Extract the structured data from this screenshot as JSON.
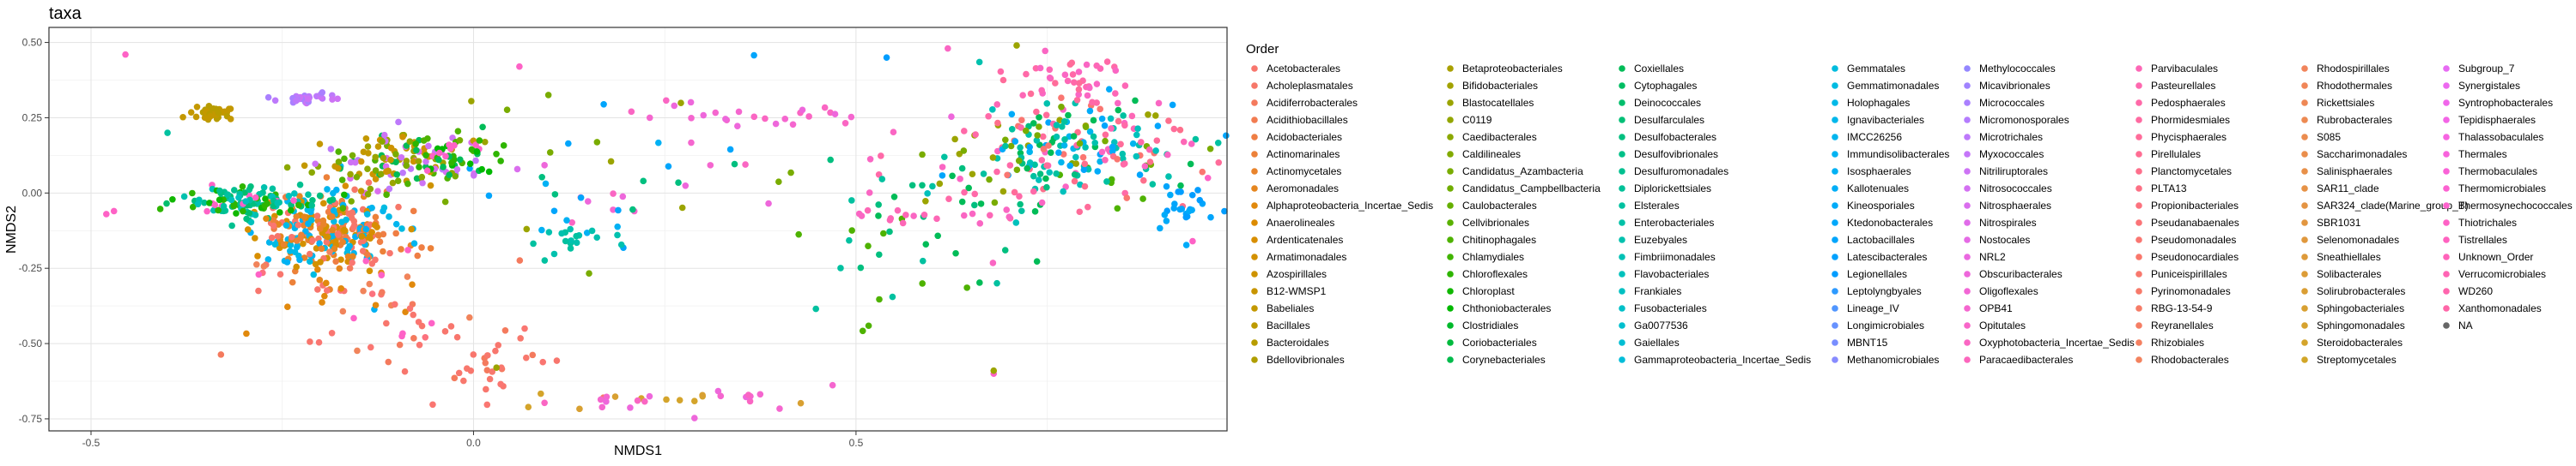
{
  "chart_data": {
    "type": "scatter",
    "title": "taxa",
    "xlabel": "NMDS1",
    "ylabel": "NMDS2",
    "xlim": [
      -0.555,
      0.985
    ],
    "ylim": [
      -0.79,
      0.55
    ],
    "x_ticks": [
      -0.5,
      0,
      0.5
    ],
    "x_tick_labels": [
      "-0.5",
      "0.0",
      "0.5"
    ],
    "y_ticks": [
      0.5,
      0.25,
      0,
      -0.25,
      -0.5,
      -0.75
    ],
    "y_tick_labels": [
      "0.50",
      "0.25",
      "0.00",
      "-0.25",
      "-0.50",
      "-0.75"
    ],
    "grid": true,
    "legend_title": "Order",
    "legend_position": "right",
    "legend_rows": 17,
    "categories": [
      "Acetobacterales",
      "Acholeplasmatales",
      "Acidiferrobacterales",
      "Acidithiobacillales",
      "Acidobacteriales",
      "Actinomarinales",
      "Actinomycetales",
      "Aeromonadales",
      "Alphaproteobacteria_Incertae_Sedis",
      "Anaerolineales",
      "Ardenticatenales",
      "Armatimonadales",
      "Azospirillales",
      "B12-WMSP1",
      "Babeliales",
      "Bacillales",
      "Bacteroidales",
      "Bdellovibrionales",
      "Betaproteobacteriales",
      "Bifidobacteriales",
      "Blastocatellales",
      "C0119",
      "Caedibacterales",
      "Caldilineales",
      "Candidatus_Azambacteria",
      "Candidatus_Campbellbacteria",
      "Caulobacterales",
      "Cellvibrionales",
      "Chitinophagales",
      "Chlamydiales",
      "Chloroflexales",
      "Chloroplast",
      "Chthoniobacterales",
      "Clostridiales",
      "Coriobacteriales",
      "Corynebacteriales",
      "Coxiellales",
      "Cytophagales",
      "Deinococcales",
      "Desulfarculales",
      "Desulfobacterales",
      "Desulfovibrionales",
      "Desulfuromonadales",
      "Diplorickettsiales",
      "Elsterales",
      "Enterobacteriales",
      "Euzebyales",
      "Fimbriimonadales",
      "Flavobacteriales",
      "Frankiales",
      "Fusobacteriales",
      "Ga0077536",
      "Gaiellales",
      "Gammaproteobacteria_Incertae_Sedis",
      "Gemmatales",
      "Gemmatimonadales",
      "Holophagales",
      "Ignavibacteriales",
      "IMCC26256",
      "Immundisolibacterales",
      "Isosphaerales",
      "Kallotenuales",
      "Kineosporiales",
      "Ktedonobacterales",
      "Lactobacillales",
      "Latescibacterales",
      "Legionellales",
      "Leptolyngbyales",
      "Lineage_IV",
      "Longimicrobiales",
      "MBNT15",
      "Methanomicrobiales",
      "Methylococcales",
      "Micavibrionales",
      "Micrococcales",
      "Micromonosporales",
      "Microtrichales",
      "Myxococcales",
      "Nitriliruptorales",
      "Nitrosococcales",
      "Nitrosphaerales",
      "Nitrospirales",
      "Nostocales",
      "NRL2",
      "Obscuribacterales",
      "Oligoflexales",
      "OPB41",
      "Opitutales",
      "Oxyphotobacteria_Incertae_Sedis",
      "Paracaedibacterales",
      "Parvibaculales",
      "Pasteurellales",
      "Pedosphaerales",
      "Phormidesmiales",
      "Phycisphaerales",
      "Pirellulales",
      "Planctomycetales",
      "PLTA13",
      "Propionibacteriales",
      "Pseudanabaenales",
      "Pseudomonadales",
      "Pseudonocardiales",
      "Puniceispirillales",
      "Pyrinomonadales",
      "RBG-13-54-9",
      "Reyranellales",
      "Rhizobiales",
      "Rhodobacterales",
      "Rhodospirillales",
      "Rhodothermales",
      "Rickettsiales",
      "Rubrobacterales",
      "S085",
      "Saccharimonadales",
      "Salinisphaerales",
      "SAR11_clade",
      "SAR324_clade(Marine_group_B)",
      "SBR1031",
      "Selenomonadales",
      "Sneathiellales",
      "Solibacterales",
      "Solirubrobacterales",
      "Sphingobacteriales",
      "Sphingomonadales",
      "Steroidobacterales",
      "Streptomycetales",
      "Subgroup_7",
      "Synergistales",
      "Syntrophobacterales",
      "Tepidisphaerales",
      "Thalassobaculales",
      "Thermales",
      "Thermobaculales",
      "Thermomicrobiales",
      "Thermosynechococcales",
      "Thiotrichales",
      "Tistrellales",
      "Unknown_Order",
      "Verrucomicrobiales",
      "WD260",
      "Xanthomonadales",
      "NA"
    ],
    "colors": [
      "#F8766D",
      "#F67769",
      "#F47A5D",
      "#F27C51",
      "#EF7E44",
      "#EC8139",
      "#E9842C",
      "#E5861F",
      "#E1890D",
      "#DC8B00",
      "#D88E00",
      "#D39100",
      "#CE9300",
      "#C89500",
      "#C39800",
      "#BD9A00",
      "#B79C00",
      "#B09E00",
      "#A9A000",
      "#A2A200",
      "#9BA400",
      "#93A600",
      "#8BA800",
      "#82AA00",
      "#79AC00",
      "#70AD00",
      "#65AF00",
      "#5AB100",
      "#4EB200",
      "#40B400",
      "#2EB500",
      "#10B700",
      "#00B800",
      "#00B92B",
      "#00BA3D",
      "#00BB4B",
      "#00BC57",
      "#00BD62",
      "#00BE6C",
      "#00BF76",
      "#00BF7F",
      "#00C088",
      "#00C090",
      "#00C198",
      "#00C1A0",
      "#00C1A7",
      "#00C1AE",
      "#00C1B5",
      "#00C1BC",
      "#00C0C2",
      "#00C0C8",
      "#00BFCE",
      "#00BED3",
      "#00BDD9",
      "#00BCDE",
      "#00BBE2",
      "#00B9E7",
      "#00B7EB",
      "#00B5EE",
      "#00B3F2",
      "#00B1F4",
      "#00AEF7",
      "#00ABF9",
      "#00A8FB",
      "#00A5FC",
      "#00A1FE",
      "#009DFF",
      "#2D9AFF",
      "#5096FF",
      "#6792FF",
      "#788EFF",
      "#878BFF",
      "#9487FF",
      "#A083FF",
      "#AA80FF",
      "#B47CFE",
      "#BD79FB",
      "#C576F9",
      "#CD73F5",
      "#D470F2",
      "#DA6EEE",
      "#E06BE9",
      "#E56AE5",
      "#EA68E0",
      "#EE67DB",
      "#F266D5",
      "#F566CF",
      "#F866C9",
      "#FA66C3",
      "#FC66BD",
      "#FD67B6",
      "#FE68AF",
      "#FF69A8",
      "#FF6AA1",
      "#FF6C9A",
      "#FF6D93",
      "#FE6F8C",
      "#FD7085",
      "#FC727E",
      "#FB7477",
      "#FA7671",
      "#F9776B",
      "#F8786D",
      "#F77A6A",
      "#F67C67",
      "#F57E64",
      "#F48061",
      "#F3825E",
      "#F1845B",
      "#F08658",
      "#EE8855",
      "#ED8A52",
      "#EB8C4F",
      "#EA8E4C",
      "#E89049",
      "#E69246",
      "#E49443",
      "#E29640",
      "#E0983D",
      "#DE9A3A",
      "#DC9C37",
      "#DA9E34",
      "#D8A031",
      "#D6A22E",
      "#D4A42B",
      "#D2A628",
      "#E76BF3",
      "#EC69EF",
      "#F066EA",
      "#F365E6",
      "#F664E1",
      "#F863DC",
      "#FA62D7",
      "#FC62D1",
      "#FD62CC",
      "#FE62C6",
      "#FF62C0",
      "#FF63BA",
      "#FF64B4",
      "#FF65AE",
      "#FF66A8",
      "#666666"
    ],
    "clusters": [
      {
        "cx": -0.19,
        "cy": -0.13,
        "sx": 0.045,
        "sy": 0.07,
        "n": 300,
        "cats": [
          6,
          7,
          0,
          1,
          4,
          5,
          10,
          11,
          55,
          56,
          58,
          60
        ]
      },
      {
        "cx": -0.3,
        "cy": -0.03,
        "sx": 0.045,
        "sy": 0.025,
        "n": 120,
        "cats": [
          30,
          31,
          38,
          40,
          42,
          44,
          46,
          48,
          135
        ]
      },
      {
        "cx": -0.1,
        "cy": 0.1,
        "sx": 0.06,
        "sy": 0.05,
        "n": 150,
        "cats": [
          20,
          22,
          24,
          28,
          36,
          76,
          78,
          80,
          12,
          14
        ]
      },
      {
        "cx": -0.34,
        "cy": 0.27,
        "sx": 0.012,
        "sy": 0.012,
        "n": 40,
        "cats": [
          14,
          16
        ]
      },
      {
        "cx": -0.22,
        "cy": 0.31,
        "sx": 0.02,
        "sy": 0.01,
        "n": 30,
        "cats": [
          74,
          76,
          78
        ]
      },
      {
        "cx": -0.14,
        "cy": -0.36,
        "sx": 0.08,
        "sy": 0.1,
        "n": 60,
        "cats": [
          0,
          2,
          8,
          98,
          100,
          108,
          135
        ]
      },
      {
        "cx": 0.0,
        "cy": -0.55,
        "sx": 0.06,
        "sy": 0.06,
        "n": 35,
        "cats": [
          0,
          2,
          100,
          102
        ]
      },
      {
        "cx": 0.28,
        "cy": -0.68,
        "sx": 0.12,
        "sy": 0.02,
        "n": 30,
        "cats": [
          84,
          86,
          88,
          122,
          124
        ]
      },
      {
        "cx": 0.2,
        "cy": 0.08,
        "sx": 0.12,
        "sy": 0.15,
        "n": 50,
        "cats": [
          84,
          86,
          88,
          20,
          24,
          40,
          60,
          64
        ]
      },
      {
        "cx": 0.8,
        "cy": 0.15,
        "sx": 0.07,
        "sy": 0.08,
        "n": 200,
        "cats": [
          88,
          90,
          92,
          94,
          96,
          44,
          46,
          48,
          20,
          24,
          28,
          36,
          58,
          62,
          64,
          100
        ]
      },
      {
        "cx": 0.67,
        "cy": 0.05,
        "sx": 0.07,
        "sy": 0.1,
        "n": 70,
        "cats": [
          36,
          40,
          44,
          48,
          20,
          24,
          88,
          92
        ]
      },
      {
        "cx": 0.77,
        "cy": 0.38,
        "sx": 0.04,
        "sy": 0.05,
        "n": 40,
        "cats": [
          88,
          90,
          92,
          94
        ]
      },
      {
        "cx": 0.58,
        "cy": -0.2,
        "sx": 0.08,
        "sy": 0.1,
        "n": 30,
        "cats": [
          36,
          40,
          44,
          28
        ]
      },
      {
        "cx": 0.13,
        "cy": -0.15,
        "sx": 0.03,
        "sy": 0.03,
        "n": 18,
        "cats": [
          44,
          46
        ]
      },
      {
        "cx": 0.58,
        "cy": -0.08,
        "sx": 0.05,
        "sy": 0.01,
        "n": 15,
        "cats": [
          88,
          90
        ]
      },
      {
        "cx": -0.03,
        "cy": 0.12,
        "sx": 0.03,
        "sy": 0.03,
        "n": 40,
        "cats": [
          135,
          30,
          32,
          36
        ]
      },
      {
        "cx": 0.4,
        "cy": 0.26,
        "sx": 0.1,
        "sy": 0.02,
        "n": 25,
        "cats": [
          84,
          86,
          88
        ]
      },
      {
        "cx": 0.93,
        "cy": -0.05,
        "sx": 0.02,
        "sy": 0.04,
        "n": 25,
        "cats": [
          62,
          64,
          66
        ]
      }
    ],
    "points": [
      {
        "x": -0.455,
        "y": 0.46,
        "c": 135
      },
      {
        "x": -0.47,
        "y": -0.06,
        "c": 135
      },
      {
        "x": -0.48,
        "y": -0.07,
        "c": 135
      },
      {
        "x": -0.4,
        "y": 0.2,
        "c": 44
      },
      {
        "x": 0.06,
        "y": 0.42,
        "c": 135
      },
      {
        "x": 0.03,
        "y": -0.58,
        "c": 20
      },
      {
        "x": 0.68,
        "y": -0.6,
        "c": 135
      },
      {
        "x": 0.68,
        "y": -0.59,
        "c": 20
      },
      {
        "x": 0.96,
        "y": 0.05,
        "c": 135
      },
      {
        "x": 0.94,
        "y": -0.16,
        "c": 135
      },
      {
        "x": 0.54,
        "y": 0.45,
        "c": 66
      },
      {
        "x": 0.62,
        "y": 0.48,
        "c": 88
      },
      {
        "x": 0.71,
        "y": 0.49,
        "c": 20
      }
    ]
  }
}
